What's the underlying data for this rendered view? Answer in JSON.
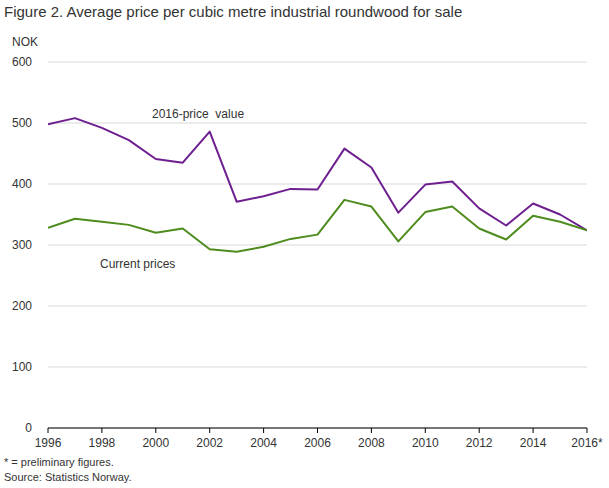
{
  "chart_data": {
    "type": "line",
    "title": "Figure 2. Average price per cubic metre industrial roundwood for sale",
    "y_label": "NOK",
    "categories": [
      "1996",
      null,
      "1998",
      null,
      "2000",
      null,
      "2002",
      null,
      "2004",
      null,
      "2006",
      null,
      "2008",
      null,
      "2010",
      null,
      "2012",
      null,
      "2014",
      null,
      "2016*"
    ],
    "series": [
      {
        "name": "2016-price  value",
        "color": "#6e1f8f",
        "values": [
          498,
          508,
          492,
          472,
          441,
          435,
          486,
          371,
          380,
          392,
          391,
          458,
          427,
          353,
          399,
          404,
          360,
          332,
          368,
          350,
          324
        ]
      },
      {
        "name": "Current prices",
        "color": "#4e8c1e",
        "values": [
          328,
          343,
          338,
          333,
          320,
          327,
          293,
          289,
          297,
          310,
          317,
          374,
          363,
          306,
          354,
          363,
          327,
          309,
          348,
          338,
          324
        ]
      }
    ],
    "ylim": [
      0,
      600
    ],
    "yticks": [
      0,
      100,
      200,
      300,
      400,
      500,
      600
    ],
    "grid": true,
    "notes": [
      "* = preliminary figures.",
      "Source: Statistics Norway."
    ]
  }
}
